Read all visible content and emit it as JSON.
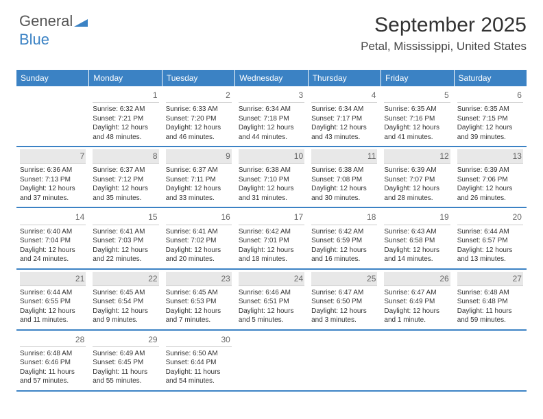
{
  "logo": {
    "part1": "General",
    "part2": "Blue"
  },
  "header": {
    "title": "September 2025",
    "location": "Petal, Mississippi, United States"
  },
  "colors": {
    "accent": "#3b82c4",
    "background": "#ffffff",
    "text": "#333333",
    "altRow": "#e8e8e8"
  },
  "typography": {
    "titleSize": 30,
    "locationSize": 17,
    "dayHeaderSize": 12,
    "cellSize": 10
  },
  "dayHeaders": [
    "Sunday",
    "Monday",
    "Tuesday",
    "Wednesday",
    "Thursday",
    "Friday",
    "Saturday"
  ],
  "weeks": [
    [
      {
        "num": "",
        "lines": []
      },
      {
        "num": "1",
        "lines": [
          "Sunrise: 6:32 AM",
          "Sunset: 7:21 PM",
          "Daylight: 12 hours and 48 minutes."
        ]
      },
      {
        "num": "2",
        "lines": [
          "Sunrise: 6:33 AM",
          "Sunset: 7:20 PM",
          "Daylight: 12 hours and 46 minutes."
        ]
      },
      {
        "num": "3",
        "lines": [
          "Sunrise: 6:34 AM",
          "Sunset: 7:18 PM",
          "Daylight: 12 hours and 44 minutes."
        ]
      },
      {
        "num": "4",
        "lines": [
          "Sunrise: 6:34 AM",
          "Sunset: 7:17 PM",
          "Daylight: 12 hours and 43 minutes."
        ]
      },
      {
        "num": "5",
        "lines": [
          "Sunrise: 6:35 AM",
          "Sunset: 7:16 PM",
          "Daylight: 12 hours and 41 minutes."
        ]
      },
      {
        "num": "6",
        "lines": [
          "Sunrise: 6:35 AM",
          "Sunset: 7:15 PM",
          "Daylight: 12 hours and 39 minutes."
        ]
      }
    ],
    [
      {
        "num": "7",
        "lines": [
          "Sunrise: 6:36 AM",
          "Sunset: 7:13 PM",
          "Daylight: 12 hours and 37 minutes."
        ]
      },
      {
        "num": "8",
        "lines": [
          "Sunrise: 6:37 AM",
          "Sunset: 7:12 PM",
          "Daylight: 12 hours and 35 minutes."
        ]
      },
      {
        "num": "9",
        "lines": [
          "Sunrise: 6:37 AM",
          "Sunset: 7:11 PM",
          "Daylight: 12 hours and 33 minutes."
        ]
      },
      {
        "num": "10",
        "lines": [
          "Sunrise: 6:38 AM",
          "Sunset: 7:10 PM",
          "Daylight: 12 hours and 31 minutes."
        ]
      },
      {
        "num": "11",
        "lines": [
          "Sunrise: 6:38 AM",
          "Sunset: 7:08 PM",
          "Daylight: 12 hours and 30 minutes."
        ]
      },
      {
        "num": "12",
        "lines": [
          "Sunrise: 6:39 AM",
          "Sunset: 7:07 PM",
          "Daylight: 12 hours and 28 minutes."
        ]
      },
      {
        "num": "13",
        "lines": [
          "Sunrise: 6:39 AM",
          "Sunset: 7:06 PM",
          "Daylight: 12 hours and 26 minutes."
        ]
      }
    ],
    [
      {
        "num": "14",
        "lines": [
          "Sunrise: 6:40 AM",
          "Sunset: 7:04 PM",
          "Daylight: 12 hours and 24 minutes."
        ]
      },
      {
        "num": "15",
        "lines": [
          "Sunrise: 6:41 AM",
          "Sunset: 7:03 PM",
          "Daylight: 12 hours and 22 minutes."
        ]
      },
      {
        "num": "16",
        "lines": [
          "Sunrise: 6:41 AM",
          "Sunset: 7:02 PM",
          "Daylight: 12 hours and 20 minutes."
        ]
      },
      {
        "num": "17",
        "lines": [
          "Sunrise: 6:42 AM",
          "Sunset: 7:01 PM",
          "Daylight: 12 hours and 18 minutes."
        ]
      },
      {
        "num": "18",
        "lines": [
          "Sunrise: 6:42 AM",
          "Sunset: 6:59 PM",
          "Daylight: 12 hours and 16 minutes."
        ]
      },
      {
        "num": "19",
        "lines": [
          "Sunrise: 6:43 AM",
          "Sunset: 6:58 PM",
          "Daylight: 12 hours and 14 minutes."
        ]
      },
      {
        "num": "20",
        "lines": [
          "Sunrise: 6:44 AM",
          "Sunset: 6:57 PM",
          "Daylight: 12 hours and 13 minutes."
        ]
      }
    ],
    [
      {
        "num": "21",
        "lines": [
          "Sunrise: 6:44 AM",
          "Sunset: 6:55 PM",
          "Daylight: 12 hours and 11 minutes."
        ]
      },
      {
        "num": "22",
        "lines": [
          "Sunrise: 6:45 AM",
          "Sunset: 6:54 PM",
          "Daylight: 12 hours and 9 minutes."
        ]
      },
      {
        "num": "23",
        "lines": [
          "Sunrise: 6:45 AM",
          "Sunset: 6:53 PM",
          "Daylight: 12 hours and 7 minutes."
        ]
      },
      {
        "num": "24",
        "lines": [
          "Sunrise: 6:46 AM",
          "Sunset: 6:51 PM",
          "Daylight: 12 hours and 5 minutes."
        ]
      },
      {
        "num": "25",
        "lines": [
          "Sunrise: 6:47 AM",
          "Sunset: 6:50 PM",
          "Daylight: 12 hours and 3 minutes."
        ]
      },
      {
        "num": "26",
        "lines": [
          "Sunrise: 6:47 AM",
          "Sunset: 6:49 PM",
          "Daylight: 12 hours and 1 minute."
        ]
      },
      {
        "num": "27",
        "lines": [
          "Sunrise: 6:48 AM",
          "Sunset: 6:48 PM",
          "Daylight: 11 hours and 59 minutes."
        ]
      }
    ],
    [
      {
        "num": "28",
        "lines": [
          "Sunrise: 6:48 AM",
          "Sunset: 6:46 PM",
          "Daylight: 11 hours and 57 minutes."
        ]
      },
      {
        "num": "29",
        "lines": [
          "Sunrise: 6:49 AM",
          "Sunset: 6:45 PM",
          "Daylight: 11 hours and 55 minutes."
        ]
      },
      {
        "num": "30",
        "lines": [
          "Sunrise: 6:50 AM",
          "Sunset: 6:44 PM",
          "Daylight: 11 hours and 54 minutes."
        ]
      },
      {
        "num": "",
        "lines": []
      },
      {
        "num": "",
        "lines": []
      },
      {
        "num": "",
        "lines": []
      },
      {
        "num": "",
        "lines": []
      }
    ]
  ]
}
